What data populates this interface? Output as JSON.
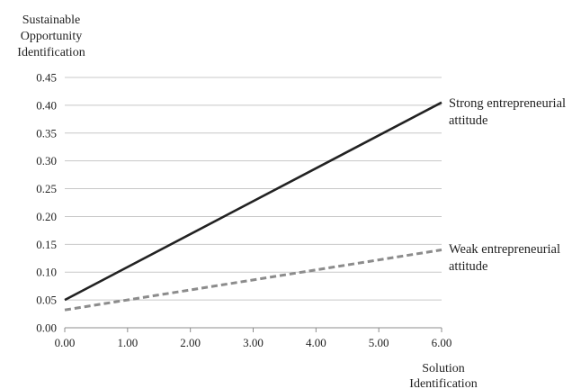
{
  "chart_data": {
    "type": "line",
    "ylabel": [
      "Sustainable",
      "Opportunity",
      "Identification"
    ],
    "xlabel": [
      "Solution",
      "Identification"
    ],
    "xlim": [
      0,
      6
    ],
    "ylim": [
      0,
      0.45
    ],
    "x_ticks": [
      "0.00",
      "1.00",
      "2.00",
      "3.00",
      "4.00",
      "5.00",
      "6.00"
    ],
    "y_ticks": [
      "0.00",
      "0.05",
      "0.10",
      "0.15",
      "0.20",
      "0.25",
      "0.30",
      "0.35",
      "0.40",
      "0.45"
    ],
    "grid": true,
    "series": [
      {
        "name": [
          "Strong entrepreneurial",
          "attitude"
        ],
        "style": "solid",
        "color": "#222222",
        "x": [
          0,
          6
        ],
        "y": [
          0.05,
          0.405
        ]
      },
      {
        "name": [
          "Weak entrepreneurial",
          "attitude"
        ],
        "style": "dashed",
        "color": "#8c8c8c",
        "x": [
          0,
          6
        ],
        "y": [
          0.032,
          0.14
        ]
      }
    ]
  }
}
